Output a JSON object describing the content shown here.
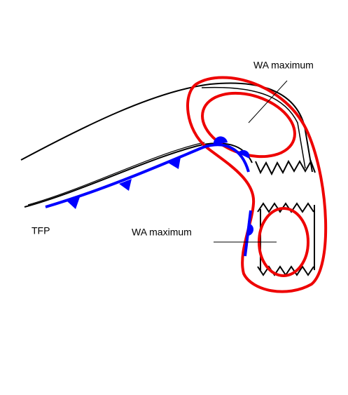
{
  "labels": [
    "WA maximum",
    "TFP",
    "WA maximum"
  ]
}
